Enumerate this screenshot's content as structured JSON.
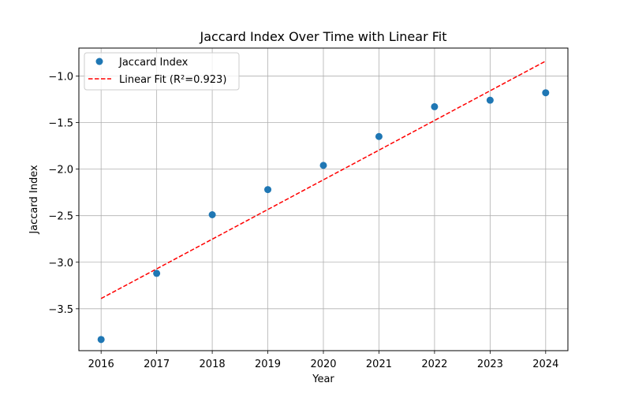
{
  "chart_data": {
    "type": "scatter",
    "title": "Jaccard Index Over Time with Linear Fit",
    "xlabel": "Year",
    "ylabel": "Jaccard Index",
    "xlim": [
      2015.6,
      2024.4
    ],
    "ylim": [
      -3.95,
      -0.7
    ],
    "x_ticks": [
      2016,
      2017,
      2018,
      2019,
      2020,
      2021,
      2022,
      2023,
      2024
    ],
    "x_tick_labels": [
      "2016",
      "2017",
      "2018",
      "2019",
      "2020",
      "2021",
      "2022",
      "2023",
      "2024"
    ],
    "y_ticks": [
      -3.5,
      -3.0,
      -2.5,
      -2.0,
      -1.5,
      -1.0
    ],
    "y_tick_labels": [
      "−3.5",
      "−3.0",
      "−2.5",
      "−2.0",
      "−1.5",
      "−1.0"
    ],
    "grid": true,
    "legend_position": "top-left",
    "series": [
      {
        "name": "Jaccard Index",
        "type": "scatter",
        "color": "#1f77b4",
        "x": [
          2016,
          2017,
          2018,
          2019,
          2020,
          2021,
          2022,
          2023,
          2024
        ],
        "y": [
          -3.83,
          -3.12,
          -2.49,
          -2.22,
          -1.96,
          -1.65,
          -1.33,
          -1.26,
          -1.18
        ]
      },
      {
        "name": "Linear Fit (R²=0.923)",
        "type": "line",
        "style": "dashed",
        "color": "#ff0000",
        "x": [
          2016,
          2024
        ],
        "y": [
          -3.39,
          -0.84
        ]
      }
    ]
  }
}
